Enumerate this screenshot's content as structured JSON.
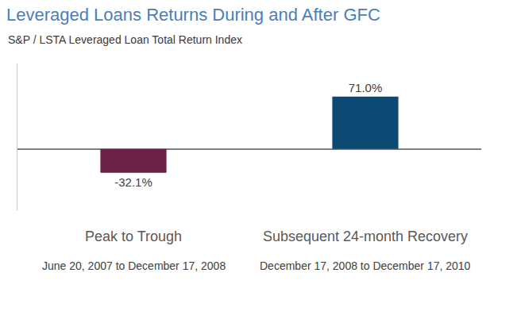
{
  "chart_data": {
    "type": "bar",
    "title": "Leveraged Loans Returns During and After GFC",
    "subtitle": "S&P / LSTA Leveraged Loan Total Return Index",
    "categories": [
      "Peak to Trough",
      "Subsequent 24-month Recovery"
    ],
    "values": [
      -32.1,
      71.0
    ],
    "value_labels": [
      "-32.1%",
      "71.0%"
    ],
    "colors": [
      "#6b2248",
      "#0d4a73"
    ],
    "annotations": [
      "June 20, 2007 to December 17, 2008",
      "December 17, 2008 to December 17, 2010"
    ],
    "ylim": [
      -83,
      116
    ],
    "yticks": [
      0
    ],
    "grid": true,
    "data_labels": true,
    "tick_labels": "x"
  }
}
